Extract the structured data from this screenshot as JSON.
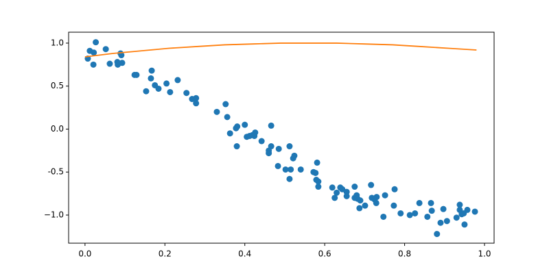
{
  "chart_data": {
    "type": "scatter",
    "xlim": [
      -0.041,
      1.024
    ],
    "ylim": [
      -1.327,
      1.127
    ],
    "xticks": [
      {
        "value": 0,
        "label": "0.0"
      },
      0.2,
      0.4,
      0.6,
      0.8,
      {
        "value": 1,
        "label": "1.0"
      }
    ],
    "yticks": [
      {
        "value": -1,
        "label": "−1.0"
      },
      -0.5,
      {
        "value": 0,
        "label": "0.0"
      },
      0.5,
      {
        "value": 1,
        "label": "1.0"
      }
    ],
    "series": [
      {
        "type": "scatter",
        "color": "#1f77b4",
        "x": [
          0.007,
          0.012,
          0.022,
          0.021,
          0.027,
          0.052,
          0.062,
          0.081,
          0.082,
          0.091,
          0.093,
          0.089,
          0.124,
          0.129,
          0.167,
          0.165,
          0.153,
          0.175,
          0.184,
          0.204,
          0.213,
          0.232,
          0.254,
          0.268,
          0.278,
          0.278,
          0.33,
          0.352,
          0.356,
          0.363,
          0.4,
          0.378,
          0.381,
          0.38,
          0.405,
          0.412,
          0.419,
          0.426,
          0.424,
          0.442,
          0.466,
          0.46,
          0.46,
          0.466,
          0.485,
          0.483,
          0.502,
          0.512,
          0.515,
          0.512,
          0.521,
          0.524,
          0.54,
          0.572,
          0.577,
          0.581,
          0.579,
          0.584,
          0.584,
          0.619,
          0.625,
          0.63,
          0.639,
          0.644,
          0.655,
          0.655,
          0.675,
          0.675,
          0.68,
          0.682,
          0.689,
          0.687,
          0.701,
          0.716,
          0.718,
          0.725,
          0.729,
          0.73,
          0.747,
          0.751,
          0.775,
          0.773,
          0.79,
          0.813,
          0.826,
          0.837,
          0.857,
          0.866,
          0.868,
          0.881,
          0.89,
          0.897,
          0.906,
          0.93,
          0.938,
          0.938,
          0.943,
          0.948,
          0.95,
          0.957,
          0.976
        ],
        "values": [
          0.82,
          0.91,
          0.89,
          0.75,
          1.01,
          0.93,
          0.76,
          0.78,
          0.75,
          0.86,
          0.77,
          0.88,
          0.63,
          0.63,
          0.68,
          0.59,
          0.44,
          0.51,
          0.47,
          0.53,
          0.43,
          0.57,
          0.42,
          0.35,
          0.36,
          0.3,
          0.2,
          0.29,
          0.14,
          -0.05,
          0.05,
          0.01,
          0.03,
          -0.2,
          -0.09,
          -0.08,
          -0.07,
          -0.04,
          -0.08,
          -0.14,
          -0.2,
          -0.25,
          -0.28,
          0.04,
          -0.23,
          -0.43,
          -0.47,
          -0.2,
          -0.47,
          -0.58,
          -0.34,
          -0.31,
          -0.47,
          -0.5,
          -0.51,
          -0.39,
          -0.59,
          -0.61,
          -0.67,
          -0.68,
          -0.8,
          -0.74,
          -0.68,
          -0.7,
          -0.73,
          -0.78,
          -0.67,
          -0.8,
          -0.77,
          -0.81,
          -0.83,
          -0.92,
          -0.89,
          -0.65,
          -0.8,
          -0.82,
          -0.86,
          -0.79,
          -1.02,
          -0.77,
          -0.7,
          -0.89,
          -0.98,
          -1.0,
          -0.98,
          -0.86,
          -1.02,
          -0.86,
          -0.95,
          -1.22,
          -1.09,
          -0.93,
          -1.07,
          -1.03,
          -0.88,
          -0.94,
          -0.99,
          -0.98,
          -1.11,
          -0.94,
          -0.96
        ]
      },
      {
        "type": "line",
        "color": "#ff7f0e",
        "x": [
          0,
          0.07,
          0.14,
          0.21,
          0.28,
          0.35,
          0.42,
          0.49,
          0.56,
          0.63,
          0.7,
          0.77,
          0.84,
          0.91,
          0.98
        ],
        "values": [
          0.84,
          0.88,
          0.91,
          0.94,
          0.96,
          0.98,
          0.99,
          1.0,
          1.0,
          1.0,
          0.99,
          0.98,
          0.96,
          0.94,
          0.92
        ]
      }
    ]
  }
}
